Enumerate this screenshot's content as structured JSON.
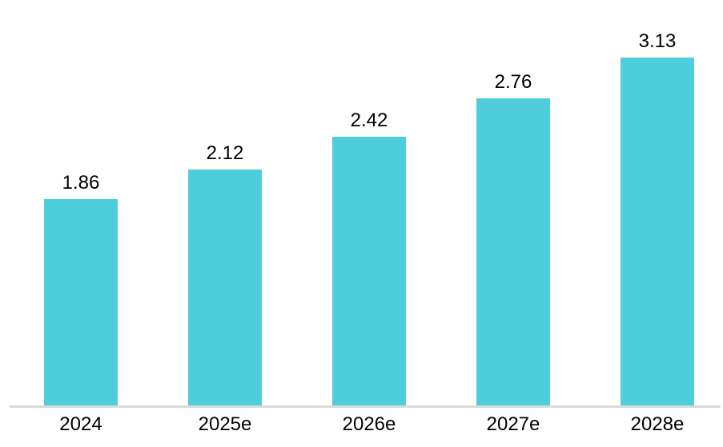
{
  "chart_data": {
    "type": "bar",
    "categories": [
      "2024",
      "2025e",
      "2026e",
      "2027e",
      "2028e"
    ],
    "values": [
      1.86,
      2.12,
      2.42,
      2.76,
      3.13
    ],
    "data_labels": [
      "1.86",
      "2.12",
      "2.42",
      "2.76",
      "3.13"
    ],
    "title": "",
    "xlabel": "",
    "ylabel": "",
    "ylim": [
      0,
      3.6
    ],
    "grid": false,
    "legend": false,
    "bar_color": "#4DCEDA",
    "axis_line_color": "#D9D9D9",
    "label_color": "#000000"
  }
}
